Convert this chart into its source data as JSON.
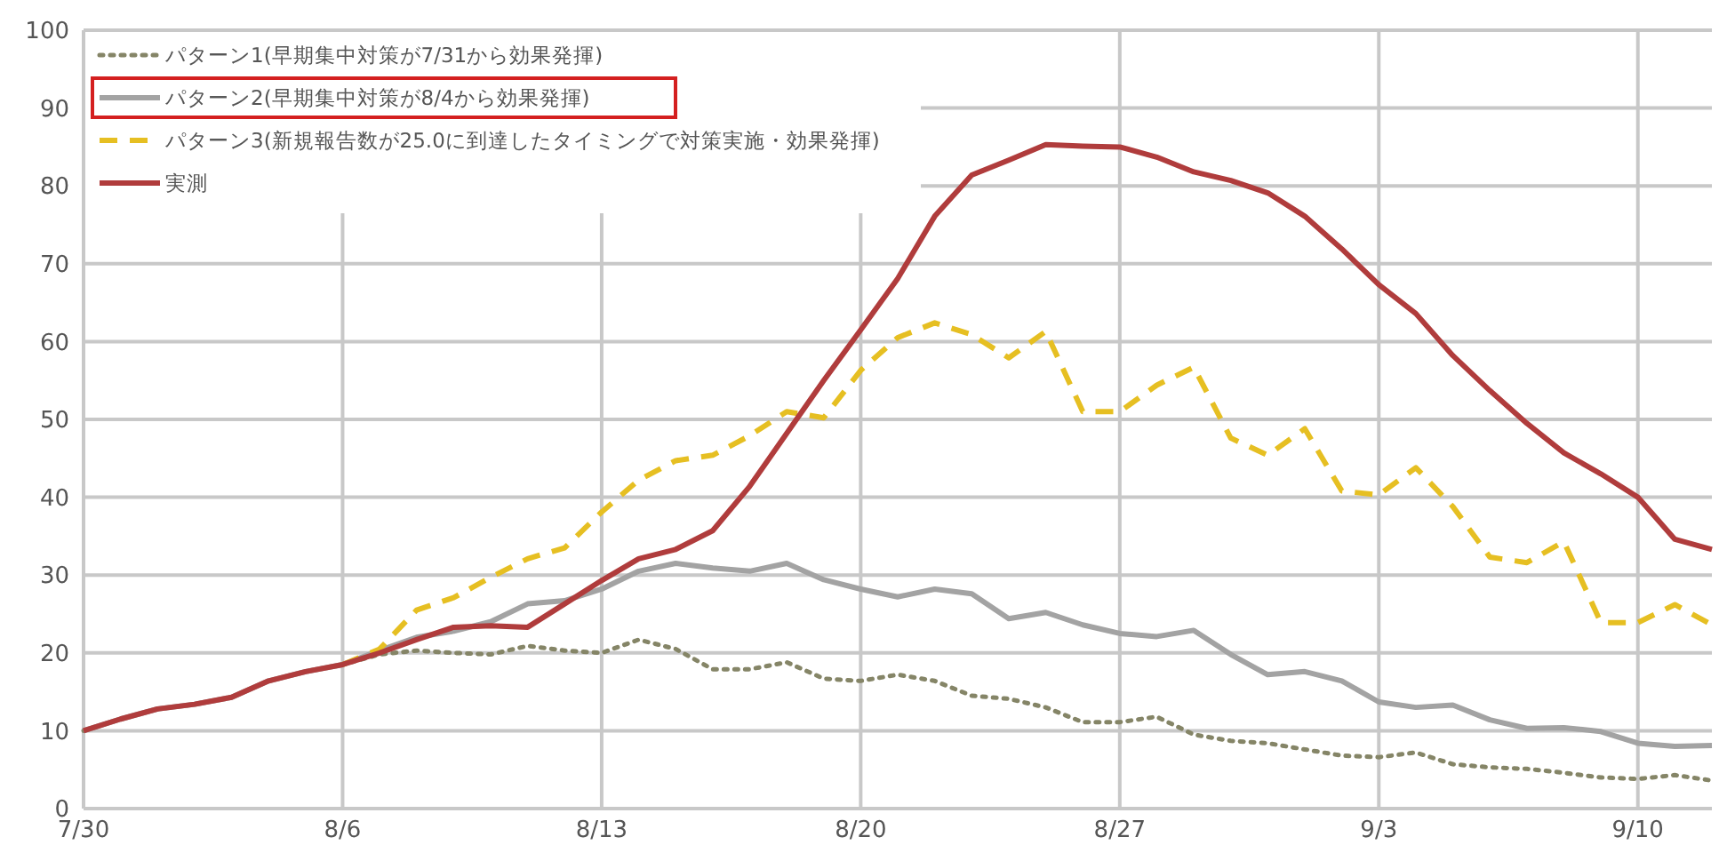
{
  "chart_data": {
    "type": "line",
    "x": [
      "--07-30",
      "--07-31",
      "--08-01",
      "--08-02",
      "--08-03",
      "--08-04",
      "--08-05",
      "--08-06",
      "--08-07",
      "--08-08",
      "--08-09",
      "--08-10",
      "--08-11",
      "--08-12",
      "--08-13",
      "--08-14",
      "--08-15",
      "--08-16",
      "--08-17",
      "--08-18",
      "--08-19",
      "--08-20",
      "--08-21",
      "--08-22",
      "--08-23",
      "--08-24",
      "--08-25",
      "--08-26",
      "--08-27",
      "--08-28",
      "--08-29",
      "--08-30",
      "--08-31",
      "--09-01",
      "--09-02",
      "--09-03",
      "--09-04",
      "--09-05",
      "--09-06",
      "--09-07",
      "--09-08",
      "--09-09",
      "--09-10",
      "--09-11",
      "--09-12"
    ],
    "series": [
      {
        "name": "パターン1(早期集中対策が7/31から効果発揮)",
        "color": "#858567",
        "line_style": "dotted",
        "values": [
          10,
          11.5,
          12.8,
          13.4,
          14.3,
          16.4,
          17.6,
          18.5,
          19.8,
          20.3,
          20,
          19.8,
          20.9,
          20.3,
          20,
          21.7,
          20.5,
          17.9,
          17.9,
          18.8,
          16.7,
          16.4,
          17.2,
          16.4,
          14.5,
          14.1,
          13,
          11.1,
          11.1,
          11.8,
          9.5,
          8.7,
          8.4,
          7.6,
          6.8,
          6.6,
          7.2,
          5.7,
          5.3,
          5.1,
          4.6,
          4,
          3.8,
          4.3,
          3.6
        ]
      },
      {
        "name": "パターン2(早期集中対策が8/4から効果発揮)",
        "color": "#a3a3a3",
        "line_style": "solid",
        "values": [
          10,
          11.5,
          12.8,
          13.4,
          14.3,
          16.4,
          17.6,
          18.5,
          20.3,
          22,
          22.8,
          24,
          26.3,
          26.7,
          28.2,
          30.5,
          31.5,
          30.9,
          30.5,
          31.5,
          29.4,
          28.2,
          27.2,
          28.2,
          27.6,
          24.4,
          25.2,
          23.6,
          22.5,
          22.1,
          22.9,
          19.8,
          17.2,
          17.6,
          16.4,
          13.7,
          13,
          13.3,
          11.4,
          10.3,
          10.4,
          9.9,
          8.4,
          8,
          8.1
        ]
      },
      {
        "name": "パターン3(新規報告数が25.0に到達したタイミングで対策実施・効果発揮)",
        "color": "#e6bf22",
        "line_style": "dashed",
        "values": [
          null,
          null,
          null,
          null,
          null,
          null,
          null,
          18.5,
          20.5,
          25.5,
          27.1,
          29.7,
          32.1,
          33.5,
          38.1,
          42.2,
          44.7,
          45.4,
          47.9,
          51,
          50.2,
          56.3,
          60.5,
          62.4,
          60.9,
          57.9,
          61.3,
          51,
          51,
          54.4,
          56.7,
          47.6,
          45.4,
          48.8,
          40.8,
          40.3,
          43.8,
          38.8,
          32.3,
          31.6,
          34.3,
          23.9,
          23.9,
          26.2,
          23.6
        ]
      },
      {
        "name": "実測",
        "color": "#b03c3c",
        "line_style": "solid",
        "values": [
          10,
          11.5,
          12.8,
          13.4,
          14.3,
          16.4,
          17.6,
          18.5,
          20,
          21.7,
          23.3,
          23.5,
          23.3,
          26.3,
          29.3,
          32.1,
          33.3,
          35.7,
          41.4,
          48.2,
          55,
          61.5,
          68.1,
          76.1,
          81.4,
          83.3,
          85.3,
          85.1,
          85,
          83.7,
          81.8,
          80.7,
          79.1,
          76.1,
          71.9,
          67.3,
          63.6,
          58.2,
          53.7,
          49.5,
          45.7,
          43,
          40,
          34.6,
          33.3
        ]
      }
    ],
    "xlim": [
      "--07-30",
      "--09-12"
    ],
    "xticks": [
      {
        "value": "--07-30",
        "label": "7/30"
      },
      {
        "value": "--08-06",
        "label": "8/6"
      },
      {
        "value": "--08-13",
        "label": "8/13"
      },
      {
        "value": "--08-20",
        "label": "8/20"
      },
      {
        "value": "--08-27",
        "label": "8/27"
      },
      {
        "value": "--09-03",
        "label": "9/3"
      },
      {
        "value": "--09-10",
        "label": "9/10"
      }
    ],
    "ylim": [
      0,
      100
    ],
    "yticks": [
      0,
      10,
      20,
      30,
      40,
      50,
      60,
      70,
      80,
      90,
      100
    ],
    "grid": true,
    "legend": "top left",
    "marker": "none"
  }
}
